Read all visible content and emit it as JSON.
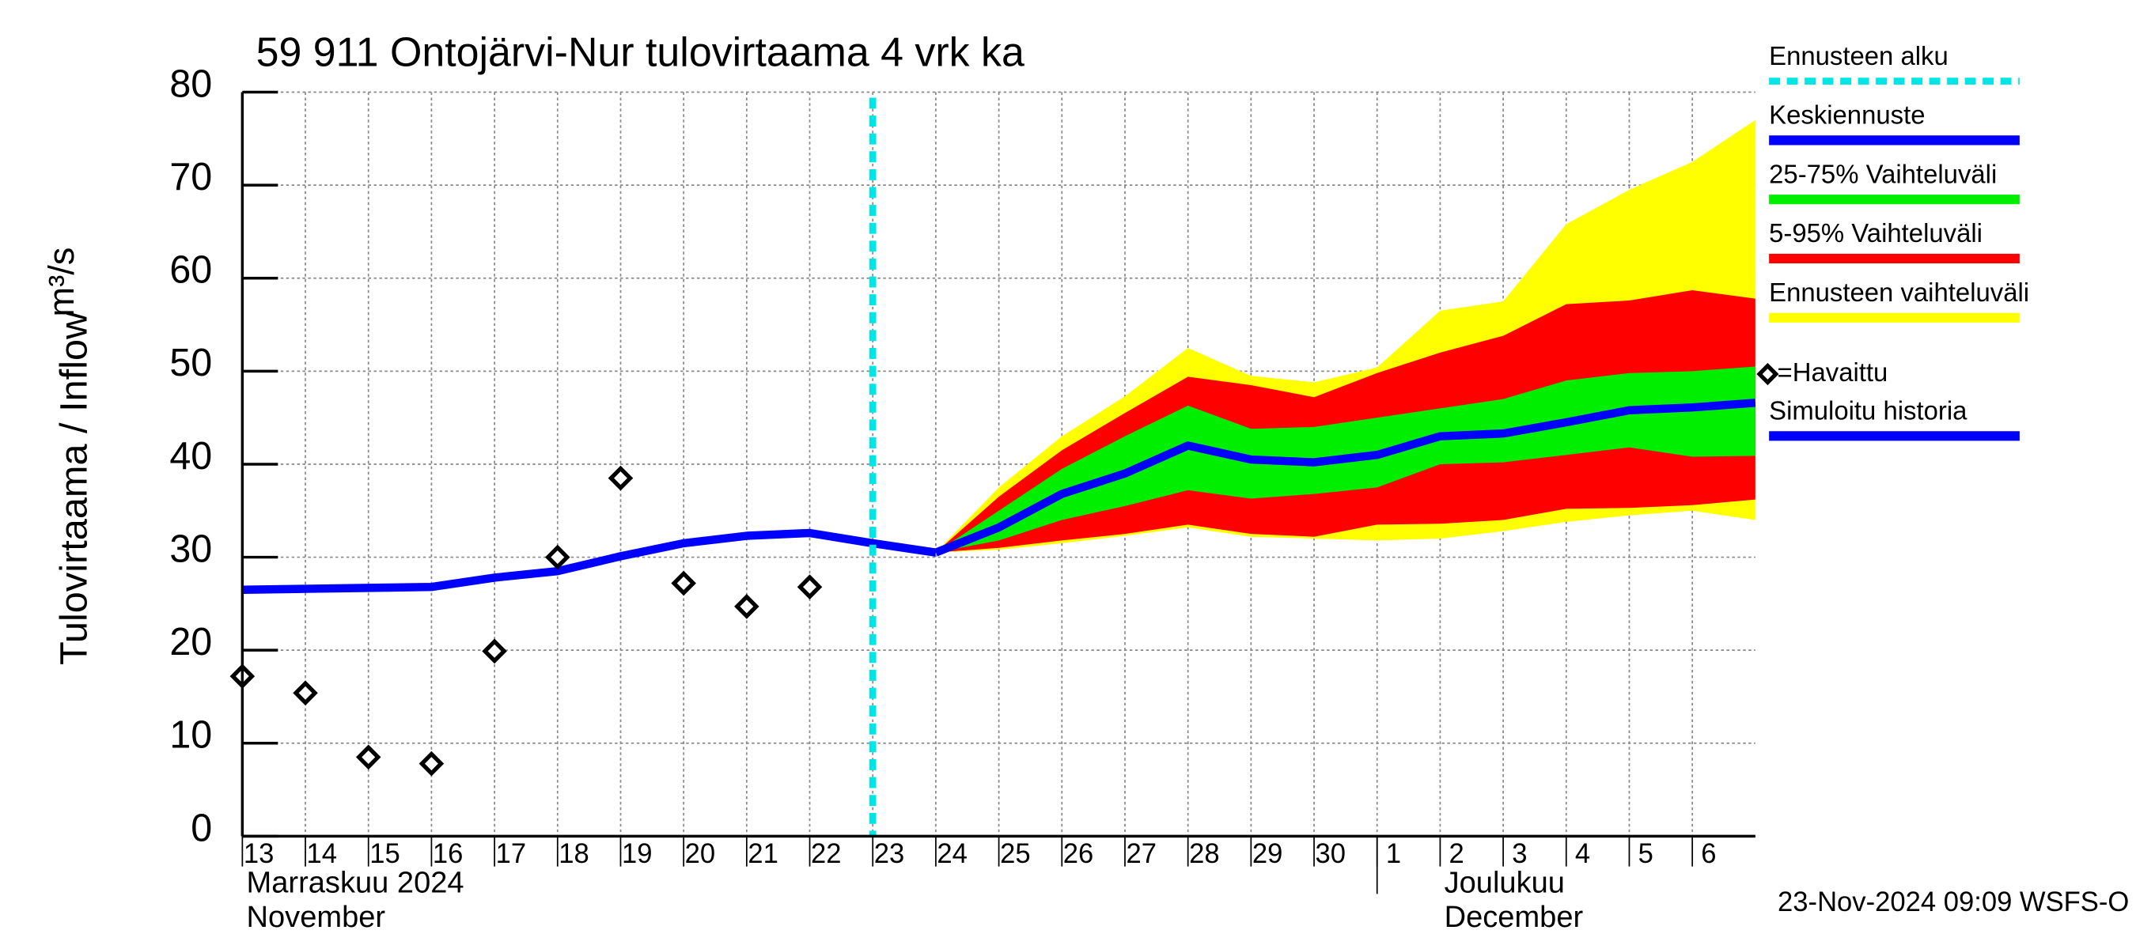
{
  "chart_data": {
    "type": "line",
    "title": "59 911 Ontojärvi-Nur tulovirtaama 4 vrk ka",
    "y_label": "Tulovirtaama / Inflow",
    "y_unit": "m³/s",
    "xlim": [
      "2024-11-13",
      "2024-12-07"
    ],
    "ylim": [
      0,
      80
    ],
    "yticks": [
      0,
      10,
      20,
      30,
      40,
      50,
      60,
      70,
      80
    ],
    "xticks": [
      {
        "value": "2024-11-13",
        "label": "13"
      },
      {
        "value": "2024-11-14",
        "label": "14"
      },
      {
        "value": "2024-11-15",
        "label": "15"
      },
      {
        "value": "2024-11-16",
        "label": "16"
      },
      {
        "value": "2024-11-17",
        "label": "17"
      },
      {
        "value": "2024-11-18",
        "label": "18"
      },
      {
        "value": "2024-11-19",
        "label": "19"
      },
      {
        "value": "2024-11-20",
        "label": "20"
      },
      {
        "value": "2024-11-21",
        "label": "21"
      },
      {
        "value": "2024-11-22",
        "label": "22"
      },
      {
        "value": "2024-11-23",
        "label": "23"
      },
      {
        "value": "2024-11-24",
        "label": "24"
      },
      {
        "value": "2024-11-25",
        "label": "25"
      },
      {
        "value": "2024-11-26",
        "label": "26"
      },
      {
        "value": "2024-11-27",
        "label": "27"
      },
      {
        "value": "2024-11-28",
        "label": "28"
      },
      {
        "value": "2024-11-29",
        "label": "29"
      },
      {
        "value": "2024-11-30",
        "label": "30"
      },
      {
        "value": "2024-12-01",
        "label": "1"
      },
      {
        "value": "2024-12-02",
        "label": "2"
      },
      {
        "value": "2024-12-03",
        "label": "3"
      },
      {
        "value": "2024-12-04",
        "label": "4"
      },
      {
        "value": "2024-12-05",
        "label": "5"
      },
      {
        "value": "2024-12-06",
        "label": "6"
      }
    ],
    "grid": true,
    "months": [
      {
        "start": "2024-11-01",
        "label": "Marraskuu 2024",
        "sublabel": "November"
      },
      {
        "start": "2024-12-01",
        "label": "Joulukuu",
        "sublabel": "December"
      }
    ],
    "forecast_start": {
      "name": "Ennusteen alku",
      "x": "2024-11-23",
      "color": "#00e5e5"
    },
    "bands": [
      {
        "name": "Ennusteen vaihteluväli",
        "color": "#ffff00",
        "x": [
          "2024-11-24",
          "2024-11-25",
          "2024-11-26",
          "2024-11-27",
          "2024-11-28",
          "2024-11-29",
          "2024-11-30",
          "2024-12-01",
          "2024-12-02",
          "2024-12-03",
          "2024-12-04",
          "2024-12-05",
          "2024-12-06",
          "2024-12-07"
        ],
        "upper": [
          30.5,
          37.5,
          43,
          47.3,
          52.5,
          49.5,
          48.8,
          50.4,
          56.5,
          57.5,
          65.8,
          69.5,
          72.5,
          77
        ],
        "lower": [
          30.5,
          30.8,
          31.5,
          32.3,
          33.2,
          32.2,
          32,
          31.8,
          32,
          32.8,
          33.8,
          34.5,
          35,
          34
        ]
      },
      {
        "name": "5-95% Vaihteluväli",
        "color": "#ff0000",
        "x": [
          "2024-11-24",
          "2024-11-25",
          "2024-11-26",
          "2024-11-27",
          "2024-11-28",
          "2024-11-29",
          "2024-11-30",
          "2024-12-01",
          "2024-12-02",
          "2024-12-03",
          "2024-12-04",
          "2024-12-05",
          "2024-12-06",
          "2024-12-07"
        ],
        "upper": [
          30.5,
          36.5,
          41.5,
          45.5,
          49.4,
          48.5,
          47.2,
          49.8,
          52,
          53.8,
          57.2,
          57.6,
          58.7,
          57.8
        ],
        "lower": [
          30.5,
          31,
          31.8,
          32.5,
          33.5,
          32.5,
          32.2,
          33.5,
          33.6,
          34,
          35.2,
          35.3,
          35.6,
          36.2
        ]
      },
      {
        "name": "25-75% Vaihteluväli",
        "color": "#00ee00",
        "x": [
          "2024-11-24",
          "2024-11-25",
          "2024-11-26",
          "2024-11-27",
          "2024-11-28",
          "2024-11-29",
          "2024-11-30",
          "2024-12-01",
          "2024-12-02",
          "2024-12-03",
          "2024-12-04",
          "2024-12-05",
          "2024-12-06",
          "2024-12-07"
        ],
        "upper": [
          30.5,
          35,
          39.5,
          43,
          46.3,
          43.8,
          44,
          45,
          46,
          47,
          49,
          49.8,
          50,
          50.5
        ],
        "lower": [
          30.5,
          31.8,
          34,
          35.5,
          37.2,
          36.3,
          36.8,
          37.5,
          40,
          40.2,
          41,
          41.8,
          40.8,
          40.9
        ]
      }
    ],
    "series": [
      {
        "name": "Keskiennuste",
        "color": "#0000ff",
        "x": [
          "2024-11-24",
          "2024-11-25",
          "2024-11-26",
          "2024-11-27",
          "2024-11-28",
          "2024-11-29",
          "2024-11-30",
          "2024-12-01",
          "2024-12-02",
          "2024-12-03",
          "2024-12-04",
          "2024-12-05",
          "2024-12-06",
          "2024-12-07"
        ],
        "values": [
          30.5,
          33.2,
          36.8,
          39,
          42,
          40.5,
          40.2,
          41,
          43,
          43.3,
          44.5,
          45.8,
          46.1,
          46.6
        ]
      },
      {
        "name": "=Havaittu",
        "color": "#000000",
        "marker": "diamond",
        "x": [
          "2024-11-13",
          "2024-11-14",
          "2024-11-15",
          "2024-11-16",
          "2024-11-17",
          "2024-11-18",
          "2024-11-19",
          "2024-11-20",
          "2024-11-21",
          "2024-11-22"
        ],
        "values": [
          17.2,
          15.4,
          8.5,
          7.8,
          19.9,
          30,
          38.5,
          27.2,
          24.7,
          26.8
        ]
      },
      {
        "name": "Simuloitu historia",
        "color": "#0000ff",
        "x": [
          "2024-11-13",
          "2024-11-14",
          "2024-11-15",
          "2024-11-16",
          "2024-11-17",
          "2024-11-18",
          "2024-11-19",
          "2024-11-20",
          "2024-11-21",
          "2024-11-22",
          "2024-11-23",
          "2024-11-24"
        ],
        "values": [
          26.5,
          26.6,
          26.7,
          26.8,
          27.8,
          28.5,
          30.1,
          31.5,
          32.3,
          32.6,
          31.5,
          30.5
        ]
      }
    ],
    "footer": "23-Nov-2024 09:09 WSFS-O"
  }
}
